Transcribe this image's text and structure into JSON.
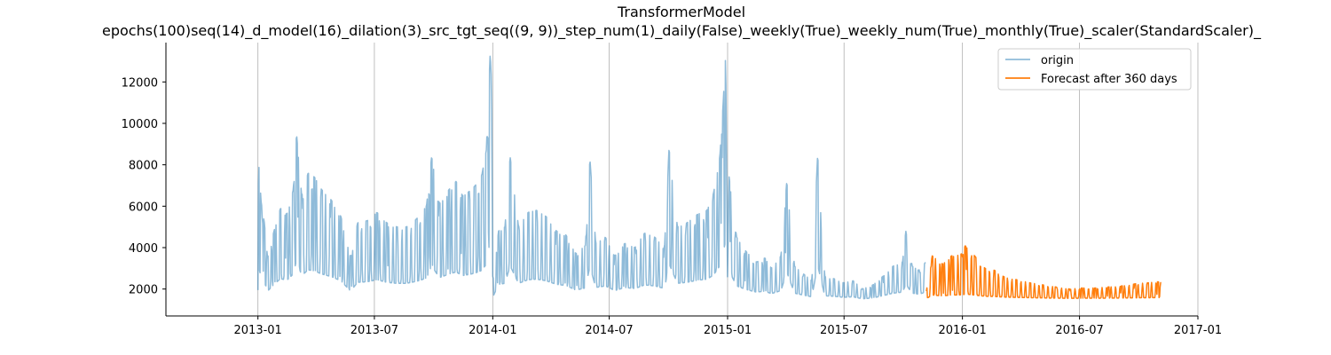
{
  "chart_data": {
    "type": "line",
    "title": "TransformerModel",
    "subtitle": "epochs(100)seq(14)_d_model(16)_dilation(3)_src_tgt_seq((9, 9))_step_num(1)_daily(False)_weekly(True)_weekly_num(True)_monthly(True)_scaler(StandardScaler)_",
    "xlabel": "",
    "ylabel": "",
    "xlim": [
      "2012-08-11",
      "2017-01-01"
    ],
    "ylim": [
      700,
      13900
    ],
    "x_ticks": [
      "2013-01",
      "2013-07",
      "2014-01",
      "2014-07",
      "2015-01",
      "2015-07",
      "2016-01",
      "2016-07",
      "2017-01"
    ],
    "y_ticks": [
      2000,
      4000,
      6000,
      8000,
      10000,
      12000
    ],
    "grid": "x-only",
    "legend_position": "top-right",
    "series": [
      {
        "name": "origin",
        "color": "#1f77b4",
        "opacity": 0.5,
        "points": [
          [
            "2013-01-01",
            1950
          ],
          [
            "2013-01-02",
            8200
          ],
          [
            "2013-01-06",
            6200
          ],
          [
            "2013-01-11",
            5200
          ],
          [
            "2013-01-16",
            3500
          ],
          [
            "2013-01-26",
            4800
          ],
          [
            "2013-02-05",
            5900
          ],
          [
            "2013-02-15",
            5600
          ],
          [
            "2013-02-25",
            6800
          ],
          [
            "2013-03-02",
            9500
          ],
          [
            "2013-03-10",
            6500
          ],
          [
            "2013-03-20",
            7600
          ],
          [
            "2013-03-30",
            7400
          ],
          [
            "2013-04-10",
            6800
          ],
          [
            "2013-04-25",
            6300
          ],
          [
            "2013-05-10",
            5500
          ],
          [
            "2013-05-25",
            3500
          ],
          [
            "2013-06-05",
            5200
          ],
          [
            "2013-06-20",
            5300
          ],
          [
            "2013-07-05",
            5700
          ],
          [
            "2013-07-20",
            5200
          ],
          [
            "2013-08-05",
            5000
          ],
          [
            "2013-08-20",
            5000
          ],
          [
            "2013-09-05",
            5400
          ],
          [
            "2013-09-20",
            6000
          ],
          [
            "2013-09-28",
            8400
          ],
          [
            "2013-10-10",
            6100
          ],
          [
            "2013-10-25",
            6800
          ],
          [
            "2013-11-05",
            7200
          ],
          [
            "2013-11-15",
            6500
          ],
          [
            "2013-11-25",
            6700
          ],
          [
            "2013-12-05",
            7000
          ],
          [
            "2013-12-15",
            7500
          ],
          [
            "2013-12-22",
            8700
          ],
          [
            "2013-12-28",
            13400
          ],
          [
            "2013-12-30",
            12000
          ],
          [
            "2014-01-01",
            2300
          ],
          [
            "2014-01-10",
            4800
          ],
          [
            "2014-01-20",
            5000
          ],
          [
            "2014-01-28",
            8400
          ],
          [
            "2014-02-10",
            5000
          ],
          [
            "2014-02-25",
            5700
          ],
          [
            "2014-03-10",
            5800
          ],
          [
            "2014-03-25",
            5500
          ],
          [
            "2014-04-10",
            4800
          ],
          [
            "2014-04-25",
            4600
          ],
          [
            "2014-05-10",
            3700
          ],
          [
            "2014-05-25",
            4100
          ],
          [
            "2014-06-01",
            8300
          ],
          [
            "2014-06-10",
            4200
          ],
          [
            "2014-06-25",
            4500
          ],
          [
            "2014-07-10",
            3600
          ],
          [
            "2014-07-25",
            4200
          ],
          [
            "2014-08-10",
            4000
          ],
          [
            "2014-08-25",
            4700
          ],
          [
            "2014-09-10",
            4500
          ],
          [
            "2014-09-25",
            4000
          ],
          [
            "2014-10-02",
            8800
          ],
          [
            "2014-10-15",
            5000
          ],
          [
            "2014-10-30",
            5200
          ],
          [
            "2014-11-15",
            5600
          ],
          [
            "2014-11-30",
            5800
          ],
          [
            "2014-12-10",
            6600
          ],
          [
            "2014-12-20",
            8400
          ],
          [
            "2014-12-25",
            10900
          ],
          [
            "2014-12-29",
            13300
          ],
          [
            "2015-01-01",
            2100
          ],
          [
            "2015-01-03",
            7500
          ],
          [
            "2015-01-15",
            4500
          ],
          [
            "2015-01-30",
            3800
          ],
          [
            "2015-02-15",
            3300
          ],
          [
            "2015-02-28",
            3500
          ],
          [
            "2015-03-10",
            3000
          ],
          [
            "2015-03-25",
            3600
          ],
          [
            "2015-04-03",
            7200
          ],
          [
            "2015-04-15",
            3100
          ],
          [
            "2015-04-30",
            2700
          ],
          [
            "2015-05-12",
            2400
          ],
          [
            "2015-05-21",
            8500
          ],
          [
            "2015-06-01",
            2600
          ],
          [
            "2015-06-15",
            2500
          ],
          [
            "2015-06-30",
            2300
          ],
          [
            "2015-07-15",
            2400
          ],
          [
            "2015-07-30",
            2000
          ],
          [
            "2015-08-15",
            2200
          ],
          [
            "2015-08-30",
            2600
          ],
          [
            "2015-09-15",
            3100
          ],
          [
            "2015-09-30",
            3300
          ],
          [
            "2015-10-05",
            4800
          ],
          [
            "2015-10-15",
            3100
          ],
          [
            "2015-10-25",
            2900
          ],
          [
            "2015-11-05",
            3300
          ]
        ]
      },
      {
        "name": "Forecast after 360 days",
        "color": "#ff7f0e",
        "opacity": 1,
        "points": [
          [
            "2015-11-06",
            1900
          ],
          [
            "2015-11-15",
            3600
          ],
          [
            "2015-12-01",
            3200
          ],
          [
            "2015-12-15",
            3600
          ],
          [
            "2015-12-31",
            3700
          ],
          [
            "2016-01-01",
            3500
          ],
          [
            "2016-01-05",
            4100
          ],
          [
            "2016-01-20",
            3600
          ],
          [
            "2016-02-05",
            3000
          ],
          [
            "2016-02-20",
            2900
          ],
          [
            "2016-03-05",
            2600
          ],
          [
            "2016-03-25",
            2450
          ],
          [
            "2016-04-15",
            2300
          ],
          [
            "2016-05-05",
            2200
          ],
          [
            "2016-05-25",
            2100
          ],
          [
            "2016-06-15",
            2000
          ],
          [
            "2016-07-05",
            2050
          ],
          [
            "2016-07-25",
            2050
          ],
          [
            "2016-08-15",
            2100
          ],
          [
            "2016-09-05",
            2150
          ],
          [
            "2016-09-25",
            2250
          ],
          [
            "2016-10-15",
            2300
          ],
          [
            "2016-10-31",
            2350
          ],
          [
            "2016-11-05",
            2300
          ]
        ]
      }
    ]
  }
}
